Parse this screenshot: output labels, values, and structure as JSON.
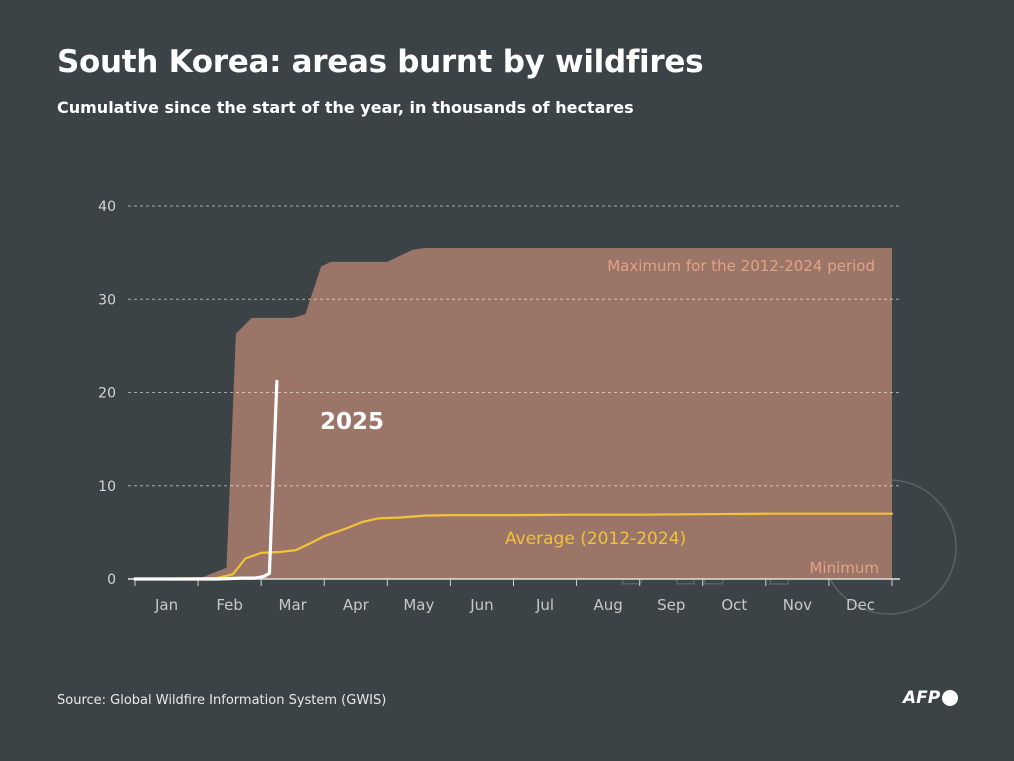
{
  "header": {
    "title": "South Korea: areas burnt by wildfires",
    "subtitle": "Cumulative since the start of the year, in thousands of hectares"
  },
  "footer": {
    "source": "Source: Global Wildfire Information System (GWIS)",
    "logo_text": "AFP"
  },
  "watermark_text": "AFP",
  "colors": {
    "background": "#3c4347",
    "range_fill": "#9b7568",
    "average_line": "#f2c33a",
    "line_2025": "#ffffff",
    "annotation": "#e3a286"
  },
  "chart_data": {
    "type": "area",
    "title": "South Korea: areas burnt by wildfires",
    "subtitle": "Cumulative since the start of the year, in thousands of hectares",
    "xlabel": "",
    "ylabel": "",
    "x_unit": "month",
    "x_range": [
      1,
      13
    ],
    "ylim": [
      0,
      40
    ],
    "y_ticks": [
      0,
      10,
      20,
      30,
      40
    ],
    "months": [
      "Jan",
      "Feb",
      "Mar",
      "Apr",
      "May",
      "Jun",
      "Jul",
      "Aug",
      "Sep",
      "Oct",
      "Nov",
      "Dec"
    ],
    "grid": true,
    "annotations": {
      "max": "Maximum for the 2012-2024 period",
      "min": "Minimum",
      "average": "Average (2012-2024)",
      "current": "2025"
    },
    "series": [
      {
        "name": "Maximum for the 2012-2024 period",
        "role": "range_upper",
        "x": [
          1.0,
          1.5,
          2.0,
          2.3,
          2.45,
          2.6,
          2.85,
          3.0,
          3.5,
          3.7,
          3.95,
          4.1,
          4.35,
          5.0,
          5.4,
          5.6,
          6.0,
          13.0
        ],
        "y": [
          0,
          0,
          0,
          0.8,
          1.2,
          26.3,
          28.0,
          28.0,
          28.0,
          28.4,
          33.5,
          34.0,
          34.0,
          34.0,
          35.3,
          35.5,
          35.5,
          35.5
        ]
      },
      {
        "name": "Minimum",
        "role": "range_lower",
        "x": [
          1.0,
          13.0
        ],
        "y": [
          0,
          0
        ]
      },
      {
        "name": "Average (2012-2024)",
        "x": [
          1.0,
          2.3,
          2.55,
          2.75,
          3.0,
          3.3,
          3.55,
          3.8,
          4.0,
          4.3,
          4.6,
          4.85,
          5.2,
          5.6,
          6.0,
          7.0,
          8.0,
          9.0,
          10.0,
          11.0,
          12.0,
          13.0
        ],
        "y": [
          0,
          0.1,
          0.5,
          2.2,
          2.8,
          2.9,
          3.1,
          3.9,
          4.6,
          5.3,
          6.1,
          6.5,
          6.6,
          6.8,
          6.85,
          6.85,
          6.9,
          6.9,
          6.95,
          7.0,
          7.0,
          7.0
        ]
      },
      {
        "name": "2025",
        "x": [
          1.0,
          2.3,
          2.7,
          2.9,
          3.0,
          3.05,
          3.13,
          3.25
        ],
        "y": [
          0,
          0,
          0.1,
          0.1,
          0.2,
          0.3,
          0.6,
          21.2
        ]
      }
    ]
  }
}
